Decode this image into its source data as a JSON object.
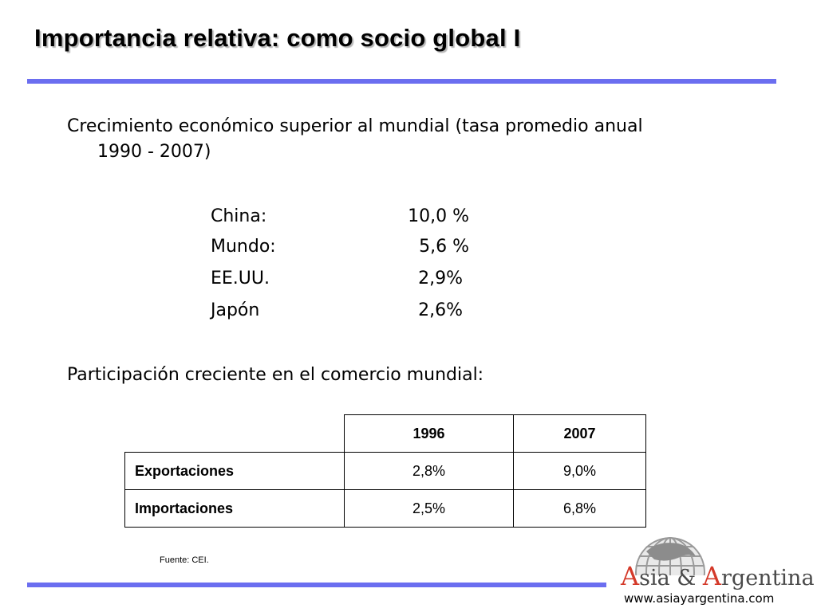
{
  "title": "Importancia relativa: como socio global I",
  "intro": {
    "line1": "Crecimiento económico superior al mundial (tasa promedio anual",
    "line2": "1990 - 2007)"
  },
  "growth": [
    {
      "name": "China:",
      "value": "10,0 %"
    },
    {
      "name": "Mundo:",
      "value": "5,6 %"
    },
    {
      "name": "EE.UU.",
      "value": "2,9%"
    },
    {
      "name": "Japón",
      "value": "2,6%"
    }
  ],
  "trade_heading": "Participación creciente en el comercio mundial:",
  "trade_table": {
    "headers": [
      "",
      "1996",
      "2007"
    ],
    "rows": [
      {
        "label": "Exportaciones",
        "values": [
          "2,8%",
          "9,0%"
        ]
      },
      {
        "label": "Importaciones",
        "values": [
          "2,5%",
          "6,8%"
        ]
      }
    ]
  },
  "source": "Fuente: CEI.",
  "logo": {
    "part1": "A",
    "part2": "sia & ",
    "part3": "A",
    "part4": "rgentina",
    "url": "www.asiayargentina.com"
  },
  "colors": {
    "rule": "#6b6ef0",
    "logo_accent": "#d43a2a",
    "logo_text": "#4a4a4a"
  }
}
